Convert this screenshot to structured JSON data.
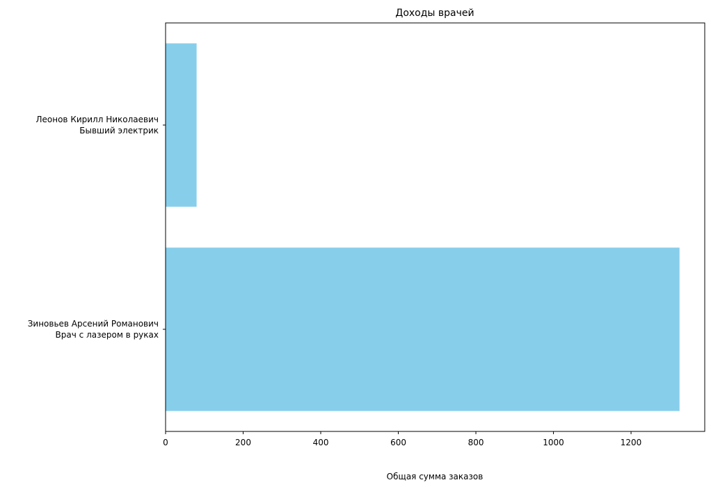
{
  "chart_data": {
    "type": "bar",
    "orientation": "horizontal",
    "title": "Доходы врачей",
    "xlabel": "Общая сумма заказов",
    "ylabel": "",
    "xlim": [
      0,
      1390
    ],
    "xticks": [
      0,
      200,
      400,
      600,
      800,
      1000,
      1200
    ],
    "categories": [
      [
        "Зиновьев Арсений Романович",
        "Врач с лазером в руках"
      ],
      [
        "Леонов Кирилл Николаевич",
        "Бывший электрик"
      ]
    ],
    "values": [
      1325,
      80
    ],
    "bar_color": "#87CEEB",
    "grid": false,
    "legend": "none"
  }
}
